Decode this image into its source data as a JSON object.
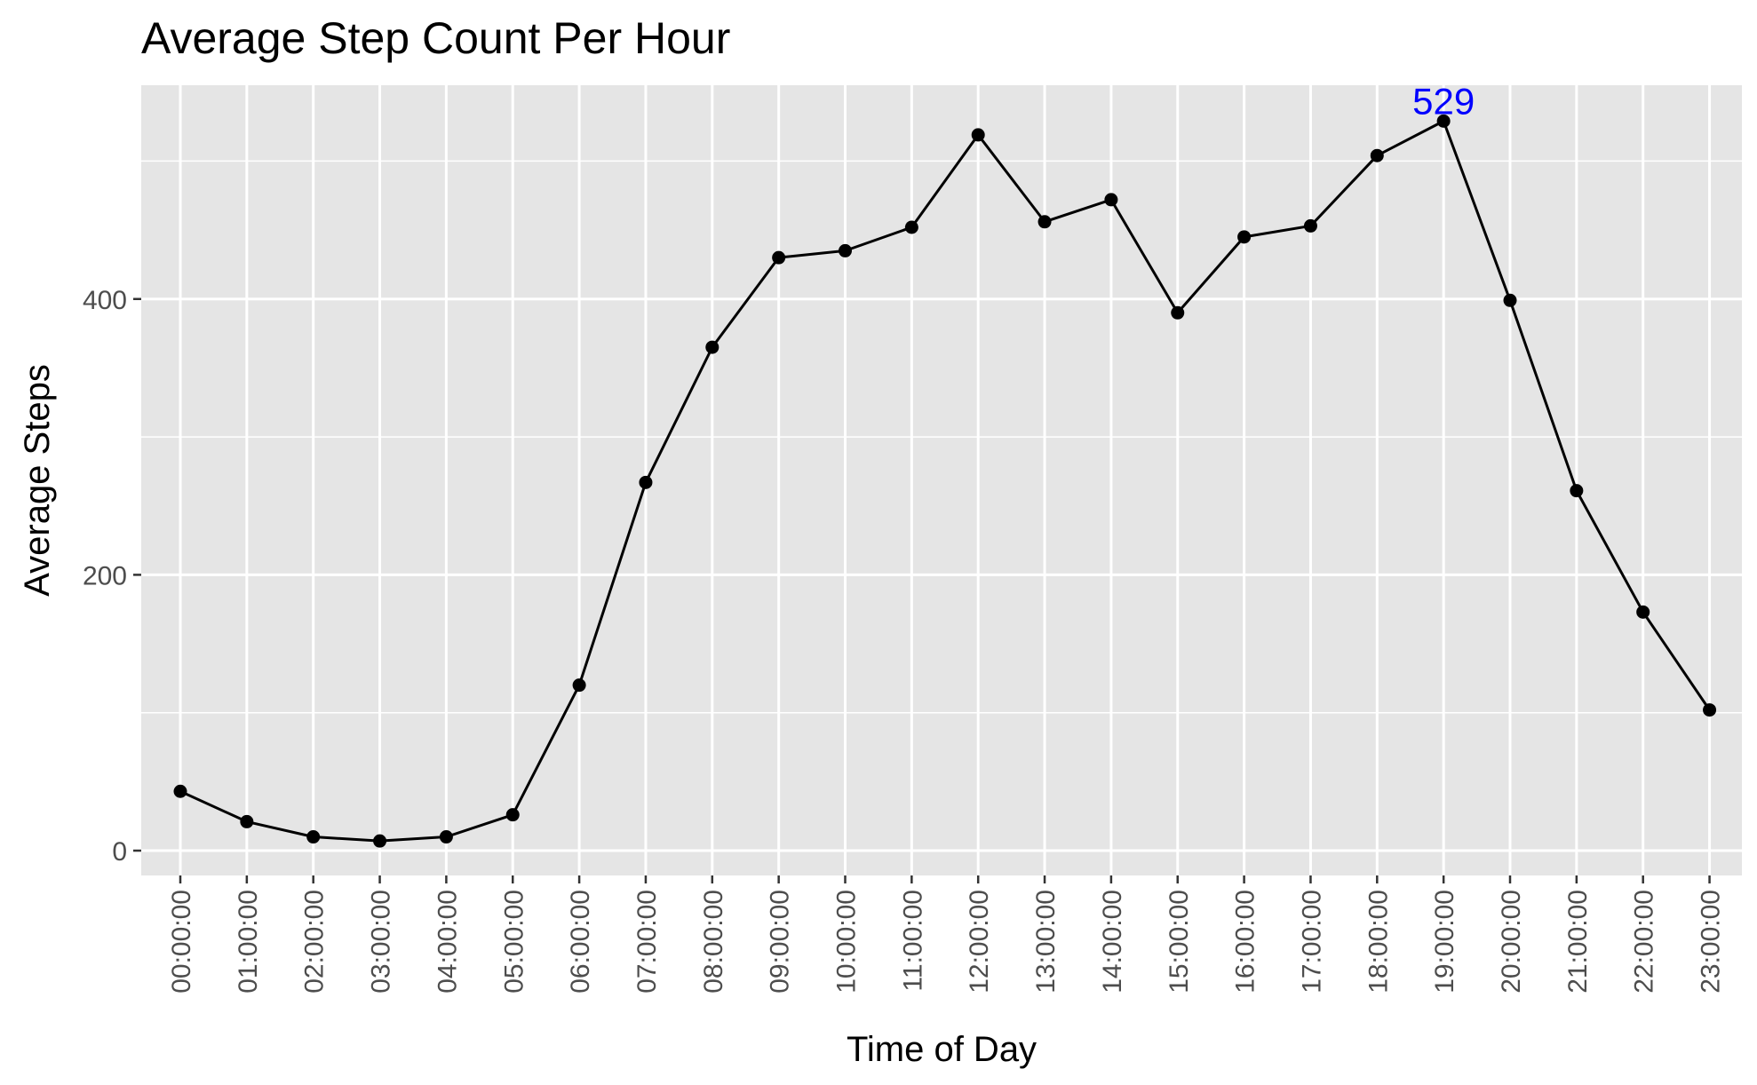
{
  "chart_data": {
    "type": "line",
    "title": "Average Step Count Per Hour",
    "xlabel": "Time of Day",
    "ylabel": "Average Steps",
    "categories": [
      "00:00:00",
      "01:00:00",
      "02:00:00",
      "03:00:00",
      "04:00:00",
      "05:00:00",
      "06:00:00",
      "07:00:00",
      "08:00:00",
      "09:00:00",
      "10:00:00",
      "11:00:00",
      "12:00:00",
      "13:00:00",
      "14:00:00",
      "15:00:00",
      "16:00:00",
      "17:00:00",
      "18:00:00",
      "19:00:00",
      "20:00:00",
      "21:00:00",
      "22:00:00",
      "23:00:00"
    ],
    "series": [
      {
        "name": "Average Steps",
        "values": [
          43,
          21,
          10,
          7,
          10,
          26,
          120,
          267,
          365,
          430,
          435,
          452,
          519,
          456,
          472,
          390,
          445,
          453,
          504,
          529,
          399,
          261,
          173,
          102
        ]
      }
    ],
    "ylim": [
      -18,
      555
    ],
    "yticks": [
      0,
      200,
      400
    ],
    "grid": true,
    "annotations": [
      {
        "category": "19:00:00",
        "value": 529,
        "text": "529",
        "color": "#0000ff"
      }
    ],
    "colors": {
      "panel": "#e5e5e5",
      "grid": "#ffffff",
      "line": "#000000",
      "point": "#000000",
      "annotation": "#0000ff"
    }
  }
}
